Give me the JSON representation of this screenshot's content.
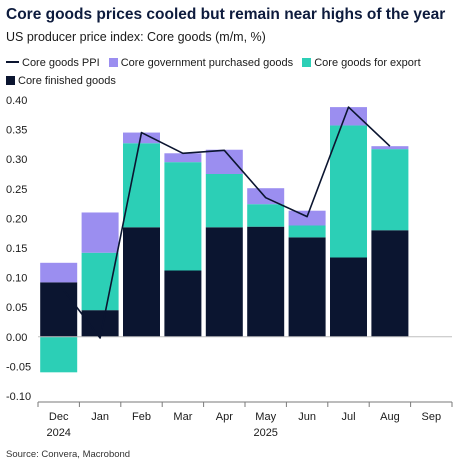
{
  "colors": {
    "core_finished": "#0b1530",
    "export": "#2ccfb6",
    "government": "#9b8ef0",
    "line": "#0b1530",
    "axis": "#7a7a7a",
    "grid": "#d9d9d9"
  },
  "chart_data": {
    "type": "bar",
    "stacked": true,
    "title": "Core goods prices cooled but remain near highs of the year",
    "subtitle": "US producer price index: Core goods (m/m, %)",
    "source": "Source: Convera, Macrobond",
    "categories": [
      "Dec",
      "Jan",
      "Feb",
      "Mar",
      "Apr",
      "May",
      "Jun",
      "Jul",
      "Aug",
      "Sep"
    ],
    "year_labels": [
      {
        "category": "Dec",
        "label": "2024"
      },
      {
        "category": "May",
        "label": "2025"
      }
    ],
    "ylim": [
      -0.1,
      0.4
    ],
    "yticks": [
      "0.40",
      "0.35",
      "0.30",
      "0.25",
      "0.20",
      "0.15",
      "0.10",
      "0.05",
      "0.00",
      "-0.05",
      "-0.10"
    ],
    "ytick_values": [
      0.4,
      0.35,
      0.3,
      0.25,
      0.2,
      0.15,
      0.1,
      0.05,
      0.0,
      -0.05,
      -0.1
    ],
    "legend_position": "top",
    "series": [
      {
        "name": "Core finished goods",
        "kind": "bar",
        "values": [
          0.092,
          0.045,
          0.185,
          0.112,
          0.185,
          0.186,
          0.168,
          0.134,
          0.18,
          null
        ]
      },
      {
        "name": "Core goods for export",
        "kind": "bar",
        "values": [
          -0.06,
          0.097,
          0.142,
          0.183,
          0.09,
          0.038,
          0.02,
          0.223,
          0.137,
          null
        ]
      },
      {
        "name": "Core government purchased goods",
        "kind": "bar",
        "values": [
          0.033,
          0.068,
          0.018,
          0.015,
          0.041,
          0.027,
          0.025,
          0.031,
          0.005,
          null
        ]
      },
      {
        "name": "Core goods PPI",
        "kind": "line",
        "values": [
          0.09,
          -0.002,
          0.345,
          0.31,
          0.315,
          0.235,
          0.203,
          0.388,
          0.322,
          null
        ]
      }
    ]
  }
}
